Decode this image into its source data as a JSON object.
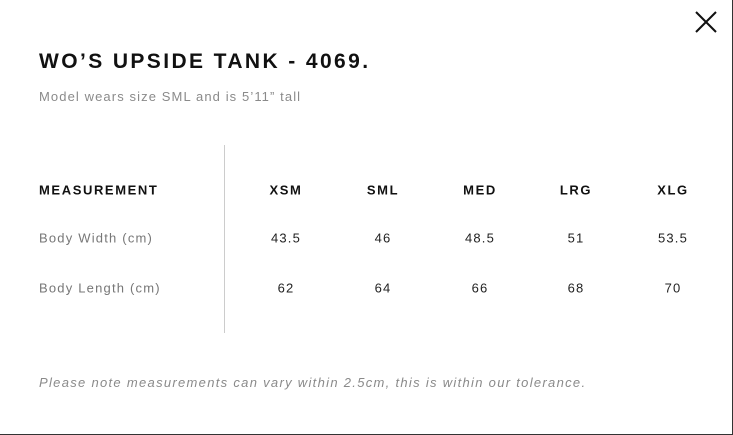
{
  "header": {
    "title": "WO’S UPSIDE TANK - 4069.",
    "subtitle": "Model wears size SML and is 5’11” tall"
  },
  "table": {
    "columns": [
      "MEASUREMENT",
      "XSM",
      "SML",
      "MED",
      "LRG",
      "XLG"
    ],
    "rows": [
      [
        "Body Width (cm)",
        "43.5",
        "46",
        "48.5",
        "51",
        "53.5"
      ],
      [
        "Body Length (cm)",
        "62",
        "64",
        "66",
        "68",
        "70"
      ]
    ]
  },
  "footer": {
    "note": "Please note measurements can vary within 2.5cm, this is within our tolerance."
  }
}
